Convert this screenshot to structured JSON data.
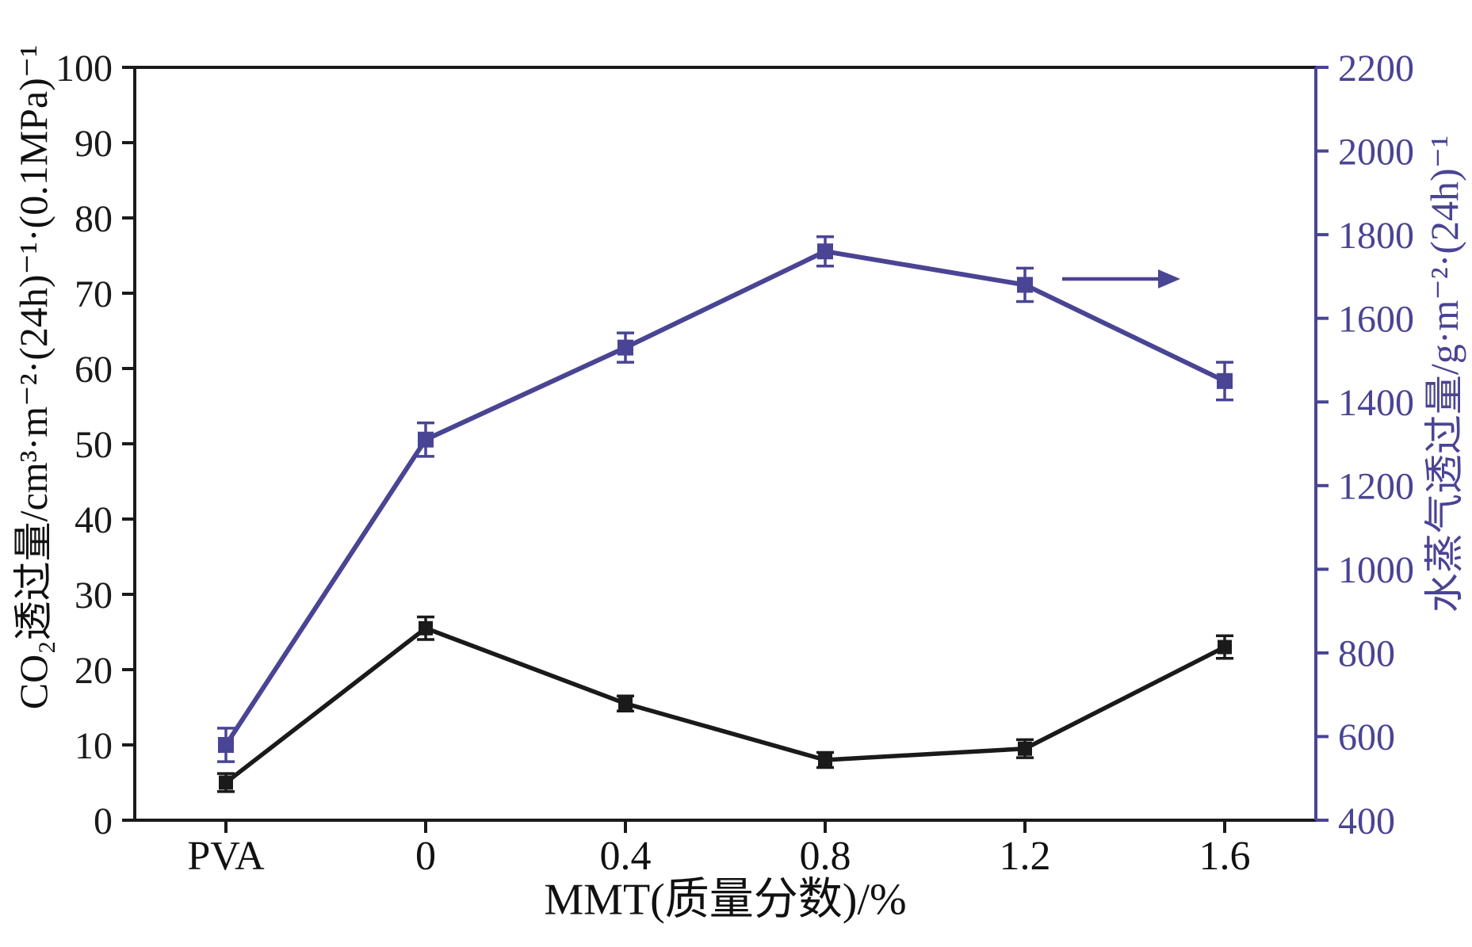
{
  "chart_data": {
    "type": "line",
    "title": "",
    "grid": false,
    "legend_position": "none",
    "x_categories": [
      "PVA",
      "0",
      "0.4",
      "0.8",
      "1.2",
      "1.6"
    ],
    "xlabel": "MMT(质量分数)/%",
    "left_axis": {
      "label": "CO₂透过量/cm³·m⁻²·(24h)⁻¹·(0.1MPa)⁻¹",
      "min": 0,
      "max": 100,
      "step": 10,
      "ticks": [
        0,
        10,
        20,
        30,
        40,
        50,
        60,
        70,
        80,
        90,
        100
      ],
      "color": "#1a1a1a"
    },
    "right_axis": {
      "label": "水蒸气透过量/g·m⁻²·(24h)⁻¹",
      "min": 400,
      "max": 2200,
      "step": 200,
      "ticks": [
        400,
        600,
        800,
        1000,
        1200,
        1400,
        1600,
        1800,
        2000,
        2200
      ],
      "color": "#4a4494"
    },
    "series": [
      {
        "name": "CO2-permeability",
        "axis": "left",
        "color": "#1a1a1a",
        "marker": "square",
        "values": [
          5,
          25.5,
          15.5,
          8,
          9.5,
          23
        ],
        "errors": [
          1.2,
          1.5,
          1.0,
          1.0,
          1.2,
          1.5
        ]
      },
      {
        "name": "water-vapor-permeability",
        "axis": "right",
        "color": "#4a4494",
        "marker": "square",
        "values": [
          580,
          1310,
          1530,
          1760,
          1680,
          1450
        ],
        "errors": [
          40,
          40,
          35,
          35,
          40,
          45
        ]
      }
    ],
    "annotation": {
      "type": "arrow-right",
      "meaning": "upper curve reads on right axis",
      "color": "#4a4494"
    }
  }
}
